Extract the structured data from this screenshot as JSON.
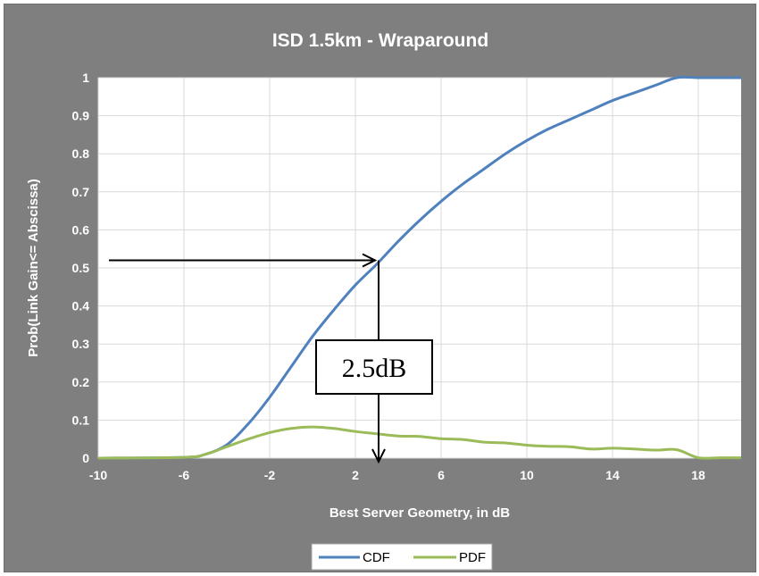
{
  "chart_data": {
    "type": "line",
    "title": "ISD 1.5km - Wraparound",
    "xlabel": "Best Server Geometry, in dB",
    "ylabel": "Prob(Link Gain<= Abscissa)",
    "xlim": [
      -10,
      20
    ],
    "ylim": [
      0,
      1
    ],
    "x_ticks": [
      -10,
      -6,
      -2,
      2,
      6,
      10,
      14,
      18
    ],
    "y_ticks": [
      0,
      0.1,
      0.2,
      0.3,
      0.4,
      0.5,
      0.6,
      0.7,
      0.8,
      0.9,
      1
    ],
    "grid": true,
    "legend": "bottom",
    "series": [
      {
        "name": "CDF",
        "color": "#4f81bd",
        "x": [
          -10,
          -6,
          -5,
          -4,
          -3,
          -2,
          -1,
          0,
          1,
          2,
          3,
          4,
          5,
          6,
          7,
          8,
          9,
          10,
          11,
          12,
          13,
          14,
          15,
          16,
          17,
          18,
          19,
          20
        ],
        "y": [
          0,
          0.002,
          0.01,
          0.035,
          0.09,
          0.16,
          0.24,
          0.32,
          0.39,
          0.455,
          0.51,
          0.57,
          0.625,
          0.675,
          0.72,
          0.76,
          0.8,
          0.835,
          0.865,
          0.89,
          0.915,
          0.94,
          0.96,
          0.98,
          1,
          1,
          1,
          1
        ]
      },
      {
        "name": "PDF",
        "color": "#9bbb59",
        "x": [
          -10,
          -6,
          -5,
          -4,
          -3,
          -2,
          -1,
          0,
          1,
          2,
          3,
          4,
          5,
          6,
          7,
          8,
          9,
          10,
          11,
          12,
          13,
          14,
          15,
          16,
          17,
          18,
          19,
          20
        ],
        "y": [
          0,
          0.002,
          0.01,
          0.03,
          0.05,
          0.067,
          0.078,
          0.082,
          0.078,
          0.07,
          0.064,
          0.058,
          0.057,
          0.051,
          0.049,
          0.042,
          0.04,
          0.034,
          0.031,
          0.03,
          0.024,
          0.026,
          0.024,
          0.021,
          0.022,
          0.001,
          0.001,
          0.001
        ]
      }
    ],
    "annotation": {
      "text": "2.5dB",
      "horizontal_arrow": {
        "from": [
          -10,
          0.52
        ],
        "to": [
          3,
          0.52
        ]
      },
      "vertical_arrow": {
        "from": [
          3,
          0.52
        ],
        "to": [
          3,
          0
        ]
      }
    }
  }
}
